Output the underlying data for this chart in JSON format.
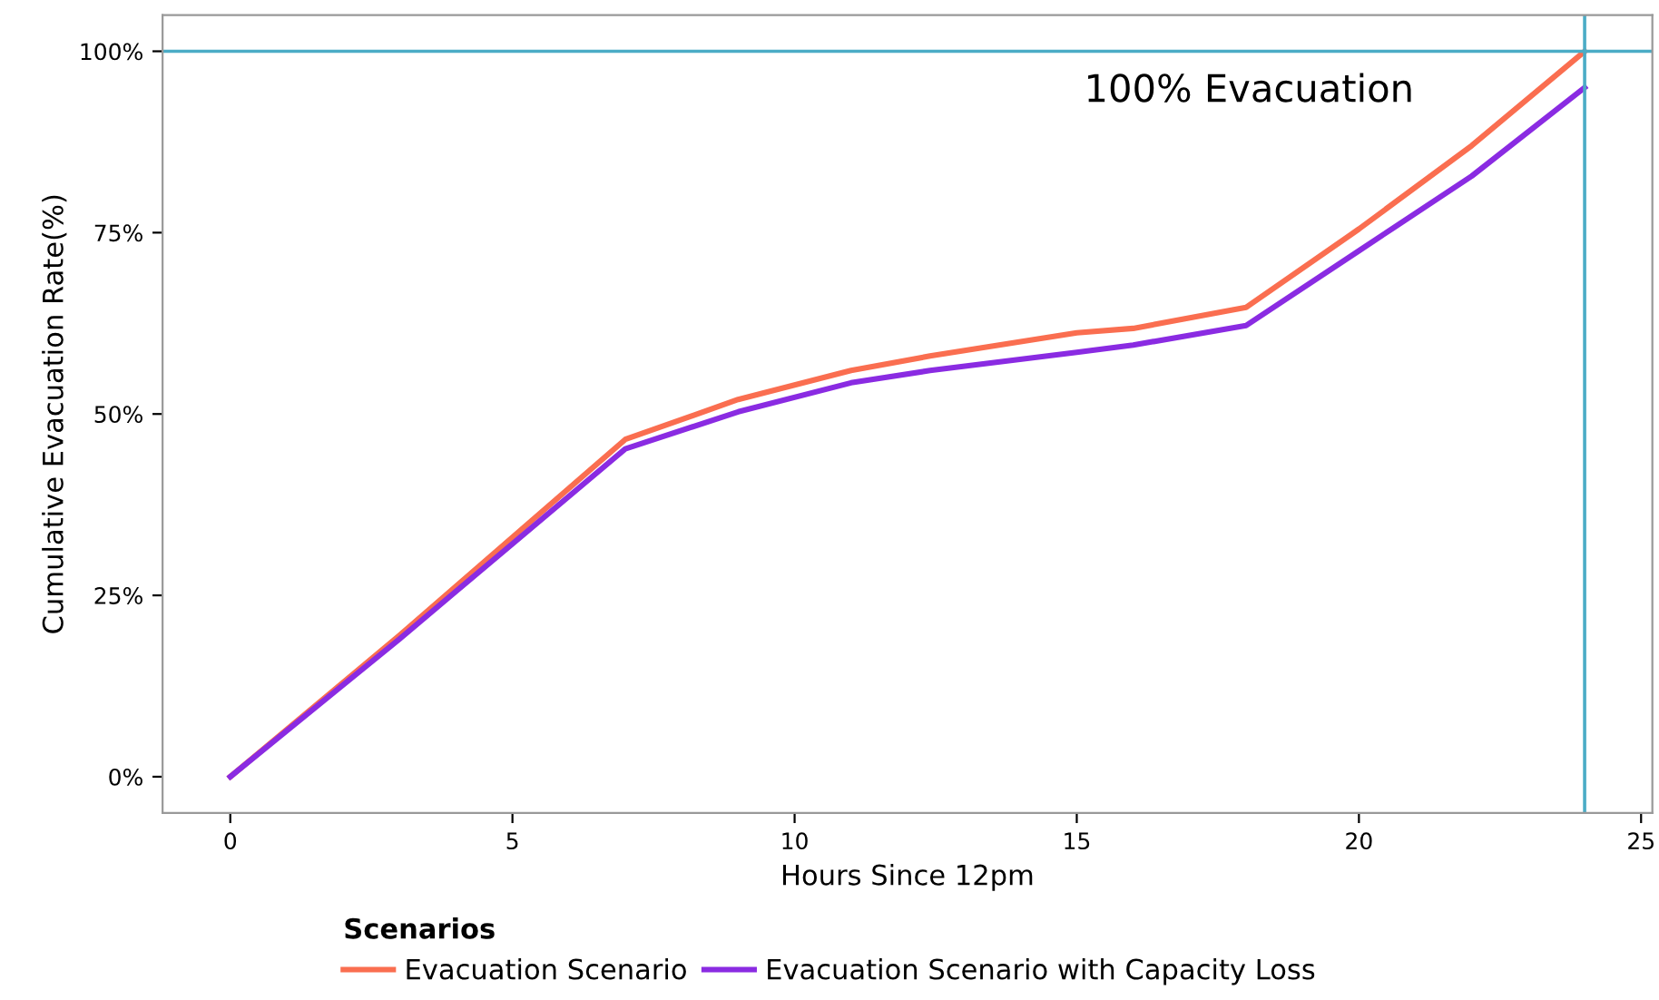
{
  "chart_data": {
    "type": "line",
    "xlabel": "Hours Since 12pm",
    "ylabel": "Cumulative Evacuation Rate(%)",
    "legend_title": "Scenarios",
    "series": [
      {
        "name": "Evacuation Scenario",
        "color": "#fa6e50",
        "x": [
          0,
          3,
          7,
          9,
          11,
          12.4,
          15,
          16,
          18,
          20,
          22,
          24
        ],
        "values": [
          0,
          19.5,
          46.5,
          52,
          56,
          58,
          61.2,
          61.8,
          64.7,
          75.5,
          87,
          100
        ]
      },
      {
        "name": "Evacuation Scenario with Capacity Loss",
        "color": "#8a2be2",
        "x": [
          0,
          3,
          7,
          9,
          11,
          12.4,
          15,
          16,
          18,
          20,
          22,
          24
        ],
        "values": [
          0,
          19,
          45.2,
          50.3,
          54.3,
          56,
          58.5,
          59.5,
          62.2,
          72.5,
          82.8,
          95
        ]
      }
    ],
    "xlim": [
      -1.2,
      25.2
    ],
    "xticks": [
      0,
      5,
      10,
      15,
      20,
      25
    ],
    "ylim": [
      -5,
      105
    ],
    "yticks": [
      {
        "value": 0,
        "label": "0%"
      },
      {
        "value": 25,
        "label": "25%"
      },
      {
        "value": 50,
        "label": "50%"
      },
      {
        "value": 75,
        "label": "75%"
      },
      {
        "value": 100,
        "label": "100%"
      }
    ],
    "ref_lines": [
      {
        "axis": "y",
        "value": 100,
        "label": "100% Evacuation",
        "color": "#4bacc6"
      },
      {
        "axis": "x",
        "value": 24,
        "color": "#4bacc6"
      }
    ],
    "grid": false,
    "legend": "bottom",
    "marker": "none",
    "line_style": "solid"
  }
}
